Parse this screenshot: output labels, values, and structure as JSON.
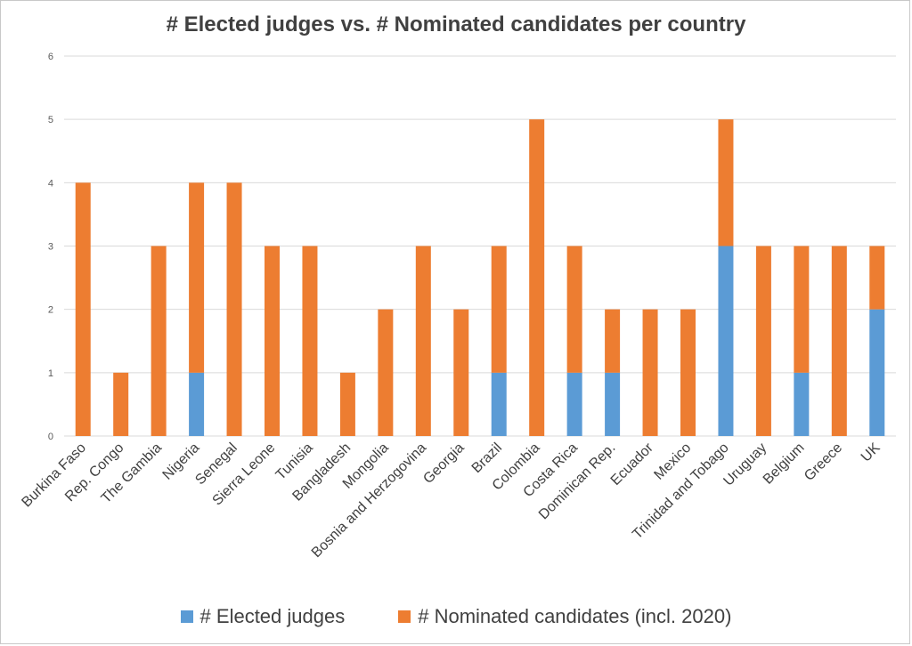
{
  "chart_data": {
    "type": "bar",
    "stacked": true,
    "title": "# Elected judges vs. # Nominated candidates per country",
    "xlabel": "",
    "ylabel": "",
    "ylim": [
      0,
      6
    ],
    "yticks": [
      0,
      1,
      2,
      3,
      4,
      5,
      6
    ],
    "grid": true,
    "legend_position": "bottom",
    "categories": [
      "Burkina Faso",
      "Rep. Congo",
      "The Gambia",
      "Nigeria",
      "Senegal",
      "Sierra Leone",
      "Tunisia",
      "Bangladesh",
      "Mongolia",
      "Bosnia and Herzogovina",
      "Georgia",
      "Brazil",
      "Colombia",
      "Costa Rica",
      "Dominican Rep.",
      "Ecuador",
      "Mexico",
      "Trinidad and Tobago",
      "Uruguay",
      "Belgium",
      "Greece",
      "UK"
    ],
    "series": [
      {
        "name": "# Elected judges",
        "color": "#5b9bd5",
        "values": [
          0,
          0,
          0,
          1,
          0,
          0,
          0,
          0,
          0,
          0,
          0,
          1,
          0,
          1,
          1,
          0,
          0,
          3,
          0,
          1,
          0,
          2
        ]
      },
      {
        "name": "# Nominated candidates (incl. 2020)",
        "color": "#ed7d31",
        "values": [
          4,
          1,
          3,
          3,
          4,
          3,
          3,
          1,
          2,
          3,
          2,
          2,
          5,
          2,
          1,
          2,
          2,
          2,
          3,
          2,
          3,
          1
        ]
      }
    ]
  }
}
